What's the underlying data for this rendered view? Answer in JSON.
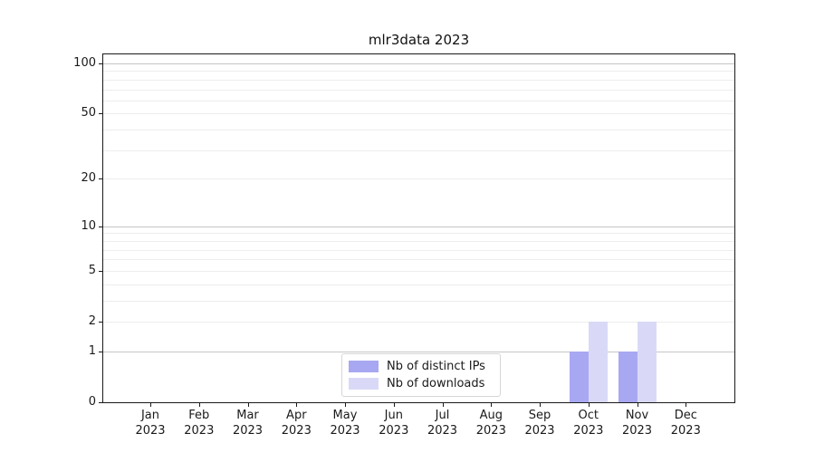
{
  "chart_data": {
    "type": "bar",
    "title": "mlr3data 2023",
    "categories": [
      {
        "month": "Jan",
        "year": "2023"
      },
      {
        "month": "Feb",
        "year": "2023"
      },
      {
        "month": "Mar",
        "year": "2023"
      },
      {
        "month": "Apr",
        "year": "2023"
      },
      {
        "month": "May",
        "year": "2023"
      },
      {
        "month": "Jun",
        "year": "2023"
      },
      {
        "month": "Jul",
        "year": "2023"
      },
      {
        "month": "Aug",
        "year": "2023"
      },
      {
        "month": "Sep",
        "year": "2023"
      },
      {
        "month": "Oct",
        "year": "2023"
      },
      {
        "month": "Nov",
        "year": "2023"
      },
      {
        "month": "Dec",
        "year": "2023"
      }
    ],
    "series": [
      {
        "name": "Nb of distinct IPs",
        "color": "#a8a8f2",
        "values": [
          0,
          0,
          0,
          0,
          0,
          0,
          0,
          0,
          0,
          1,
          1,
          0
        ]
      },
      {
        "name": "Nb of downloads",
        "color": "#d9d9f7",
        "values": [
          0,
          0,
          0,
          0,
          0,
          0,
          0,
          0,
          0,
          2,
          2,
          0
        ]
      }
    ],
    "y_axis": {
      "scale": "log1p",
      "max": 100,
      "tick_values": [
        0,
        1,
        2,
        5,
        10,
        20,
        50,
        100
      ],
      "tick_labels": [
        "0",
        "1",
        "2",
        "5",
        "10",
        "20",
        "50",
        "100"
      ],
      "major_gridlines": [
        1,
        10,
        100
      ],
      "minor_gridlines": [
        2,
        3,
        4,
        5,
        6,
        7,
        8,
        9,
        20,
        30,
        40,
        50,
        60,
        70,
        80,
        90
      ]
    },
    "legend": {
      "position": "lower center"
    },
    "grid": true,
    "colors": {
      "major_grid": "#c6c6c6",
      "minor_grid": "#ededed",
      "axis": "#1a1a1a"
    }
  }
}
